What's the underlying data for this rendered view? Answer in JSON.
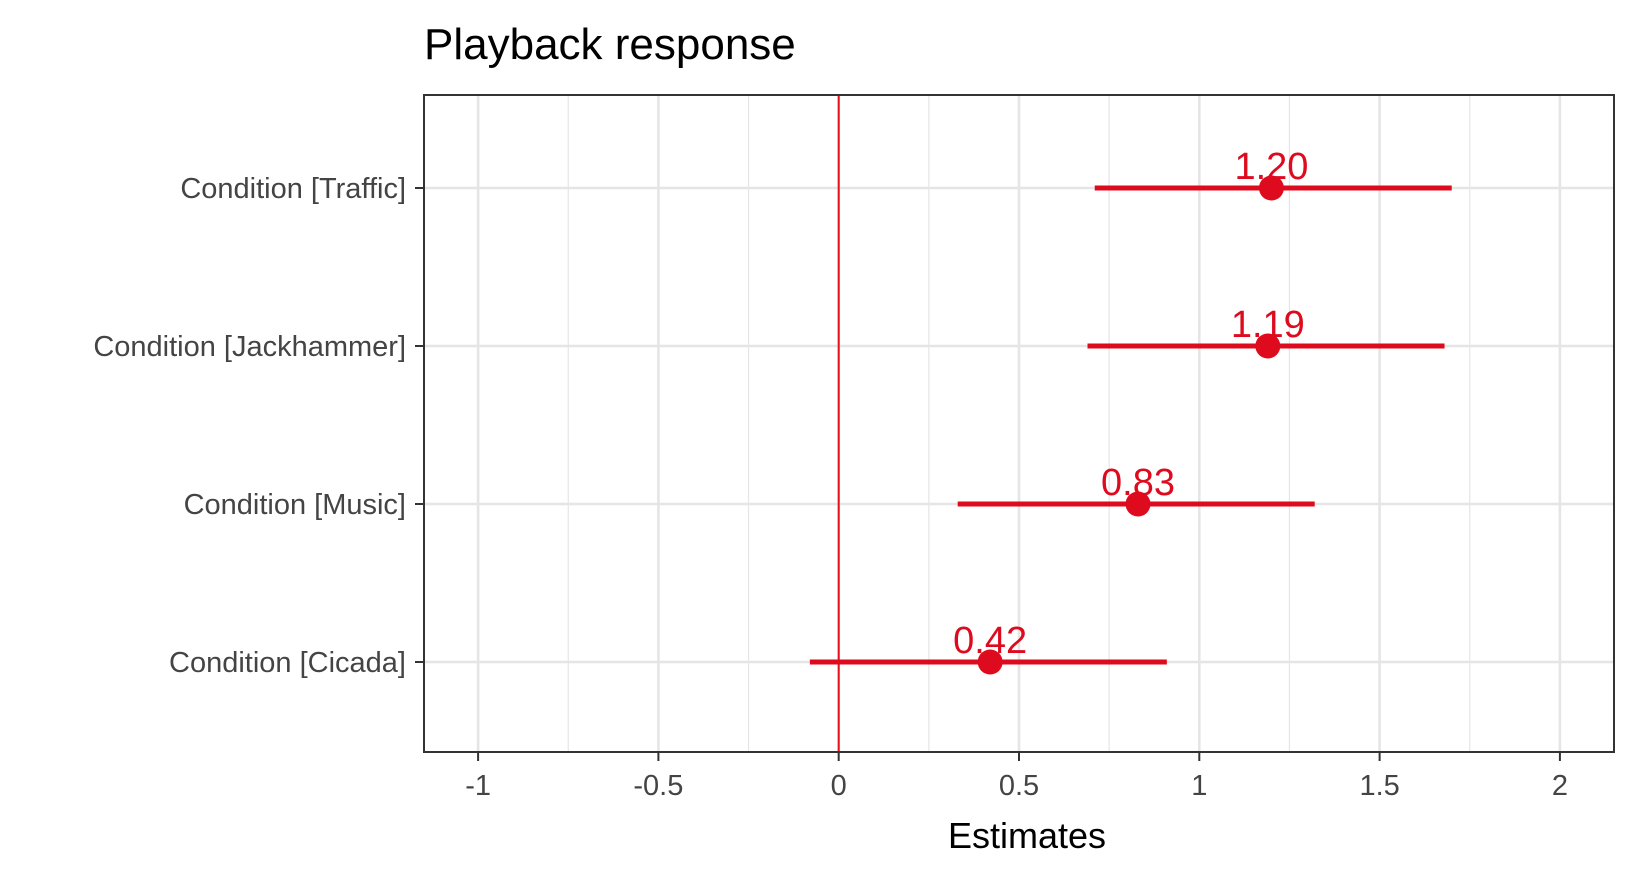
{
  "chart_data": {
    "type": "forest",
    "title": "Playback response",
    "xlabel": "Estimates",
    "ylabel": "",
    "xlim": [
      -1.15,
      2.15
    ],
    "x_ticks": [
      -1,
      -0.5,
      0,
      0.5,
      1,
      1.5,
      2
    ],
    "x_tick_labels": [
      "-1",
      "-0.5",
      "0",
      "0.5",
      "1",
      "1.5",
      "2"
    ],
    "reference_line": 0,
    "grid": true,
    "legend": "none",
    "colors": {
      "estimate": "#DE0A1E",
      "reference_line": "#E8101C",
      "grid": "#E5E5E5",
      "panel_border": "#333333",
      "tick_label": "#444444"
    },
    "categories": [
      "Condition [Traffic]",
      "Condition [Jackhammer]",
      "Condition [Music]",
      "Condition [Cicada]"
    ],
    "estimates": [
      1.2,
      1.19,
      0.83,
      0.42
    ],
    "conf_low": [
      0.71,
      0.69,
      0.33,
      -0.08
    ],
    "conf_high": [
      1.7,
      1.68,
      1.32,
      0.91
    ],
    "value_labels": [
      "1.20",
      "1.19",
      "0.83",
      "0.42"
    ]
  }
}
